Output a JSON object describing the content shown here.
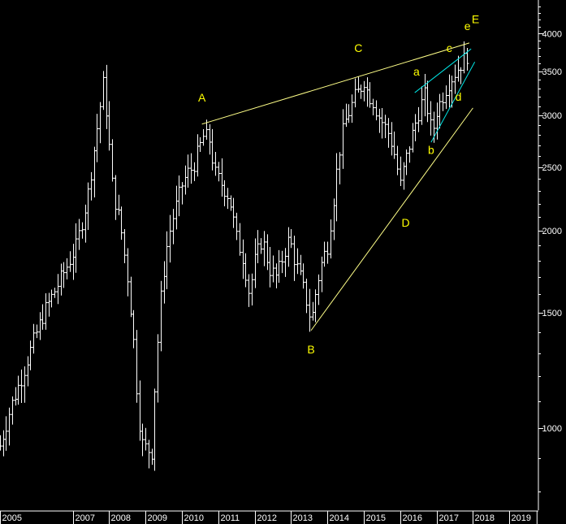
{
  "chart_data": {
    "type": "ohlc",
    "scale": "log",
    "ylim": [
      750,
      4500
    ],
    "xlim": [
      2005.0,
      2019.75
    ],
    "yticks": [
      1000,
      1500,
      2000,
      2500,
      3000,
      3500,
      4000
    ],
    "xticks": [
      {
        "label": "2005",
        "year": 2005.0
      },
      {
        "label": "2007",
        "year": 2007.0
      },
      {
        "label": "2008",
        "year": 2008.0
      },
      {
        "label": "2009",
        "year": 2009.0
      },
      {
        "label": "2010",
        "year": 2010.0
      },
      {
        "label": "2011",
        "year": 2011.0
      },
      {
        "label": "2012",
        "year": 2012.0
      },
      {
        "label": "2013",
        "year": 2013.0
      },
      {
        "label": "2014",
        "year": 2014.0
      },
      {
        "label": "2015",
        "year": 2015.0
      },
      {
        "label": "2016",
        "year": 2016.0
      },
      {
        "label": "2017",
        "year": 2017.0
      },
      {
        "label": "2018",
        "year": 2018.0
      },
      {
        "label": "2019",
        "year": 2019.0
      }
    ],
    "price_path": [
      [
        2005.0,
        940
      ],
      [
        2005.3,
        1080
      ],
      [
        2005.6,
        1200
      ],
      [
        2005.9,
        1350
      ],
      [
        2006.2,
        1500
      ],
      [
        2006.5,
        1620
      ],
      [
        2006.8,
        1750
      ],
      [
        2007.1,
        1900
      ],
      [
        2007.4,
        2250
      ],
      [
        2007.6,
        2700
      ],
      [
        2007.75,
        3100
      ],
      [
        2007.85,
        3400
      ],
      [
        2007.95,
        2900
      ],
      [
        2008.1,
        2300
      ],
      [
        2008.3,
        2050
      ],
      [
        2008.5,
        1700
      ],
      [
        2008.65,
        1400
      ],
      [
        2008.8,
        1050
      ],
      [
        2008.95,
        920
      ],
      [
        2009.05,
        950
      ],
      [
        2009.15,
        880
      ],
      [
        2009.25,
        1150
      ],
      [
        2009.4,
        1550
      ],
      [
        2009.55,
        1850
      ],
      [
        2009.7,
        2050
      ],
      [
        2009.85,
        2200
      ],
      [
        2010.0,
        2350
      ],
      [
        2010.15,
        2450
      ],
      [
        2010.3,
        2500
      ],
      [
        2010.45,
        2650
      ],
      [
        2010.6,
        2800
      ],
      [
        2010.75,
        2750
      ],
      [
        2010.9,
        2450
      ],
      [
        2011.1,
        2350
      ],
      [
        2011.3,
        2250
      ],
      [
        2011.5,
        1950
      ],
      [
        2011.7,
        1800
      ],
      [
        2011.85,
        1600
      ],
      [
        2012.0,
        1800
      ],
      [
        2012.2,
        1950
      ],
      [
        2012.4,
        1750
      ],
      [
        2012.6,
        1700
      ],
      [
        2012.8,
        1850
      ],
      [
        2012.95,
        1950
      ],
      [
        2013.1,
        1800
      ],
      [
        2013.25,
        1700
      ],
      [
        2013.4,
        1580
      ],
      [
        2013.55,
        1450
      ],
      [
        2013.7,
        1650
      ],
      [
        2013.85,
        1800
      ],
      [
        2014.0,
        1900
      ],
      [
        2014.15,
        2200
      ],
      [
        2014.3,
        2600
      ],
      [
        2014.45,
        2900
      ],
      [
        2014.6,
        3050
      ],
      [
        2014.75,
        3200
      ],
      [
        2014.9,
        3300
      ],
      [
        2015.0,
        3400
      ],
      [
        2015.1,
        3250
      ],
      [
        2015.25,
        3150
      ],
      [
        2015.4,
        3000
      ],
      [
        2015.55,
        2900
      ],
      [
        2015.7,
        2800
      ],
      [
        2015.85,
        2600
      ],
      [
        2016.0,
        2350
      ],
      [
        2016.1,
        2500
      ],
      [
        2016.25,
        2700
      ],
      [
        2016.4,
        2900
      ],
      [
        2016.55,
        3100
      ],
      [
        2016.7,
        3250
      ],
      [
        2016.8,
        2900
      ],
      [
        2016.9,
        2850
      ],
      [
        2017.0,
        3050
      ],
      [
        2017.15,
        3200
      ],
      [
        2017.3,
        3350
      ],
      [
        2017.45,
        3450
      ],
      [
        2017.6,
        3550
      ],
      [
        2017.75,
        3650
      ],
      [
        2017.85,
        3720
      ]
    ],
    "annotations": [
      {
        "label": "A",
        "year": 2010.55,
        "price": 3150,
        "color": "#ffff00"
      },
      {
        "label": "B",
        "year": 2013.55,
        "price": 1300,
        "color": "#ffff00"
      },
      {
        "label": "C",
        "year": 2014.85,
        "price": 3750,
        "color": "#ffff00"
      },
      {
        "label": "D",
        "year": 2016.15,
        "price": 2030,
        "color": "#ffff00"
      },
      {
        "label": "E",
        "year": 2018.07,
        "price": 4150,
        "color": "#ffff00"
      },
      {
        "label": "a",
        "year": 2016.45,
        "price": 3450,
        "color": "#ffff00"
      },
      {
        "label": "b",
        "year": 2016.85,
        "price": 2620,
        "color": "#ffff00"
      },
      {
        "label": "c",
        "year": 2017.35,
        "price": 3750,
        "color": "#ffff00"
      },
      {
        "label": "d",
        "year": 2017.6,
        "price": 3160,
        "color": "#ffff00"
      },
      {
        "label": "e",
        "year": 2017.85,
        "price": 4050,
        "color": "#ffff00"
      }
    ],
    "trendlines": [
      {
        "name": "A-C-E",
        "color": "#ffff88",
        "from": [
          2010.55,
          2910
        ],
        "to": [
          2017.9,
          3870
        ]
      },
      {
        "name": "B-D",
        "color": "#ffff88",
        "from": [
          2013.55,
          1410
        ],
        "to": [
          2018.0,
          3080
        ]
      },
      {
        "name": "a-c",
        "color": "#00e5e5",
        "from": [
          2016.4,
          3250
        ],
        "to": [
          2017.95,
          3790
        ]
      },
      {
        "name": "b-d",
        "color": "#00e5e5",
        "from": [
          2016.85,
          2730
        ],
        "to": [
          2018.05,
          3620
        ]
      }
    ]
  },
  "colors": {
    "background": "#000000",
    "bars": "#ffffff",
    "axis_text": "#ffffff",
    "label": "#ffff00",
    "trend_main": "#ffff88",
    "trend_channel": "#00e5e5"
  }
}
